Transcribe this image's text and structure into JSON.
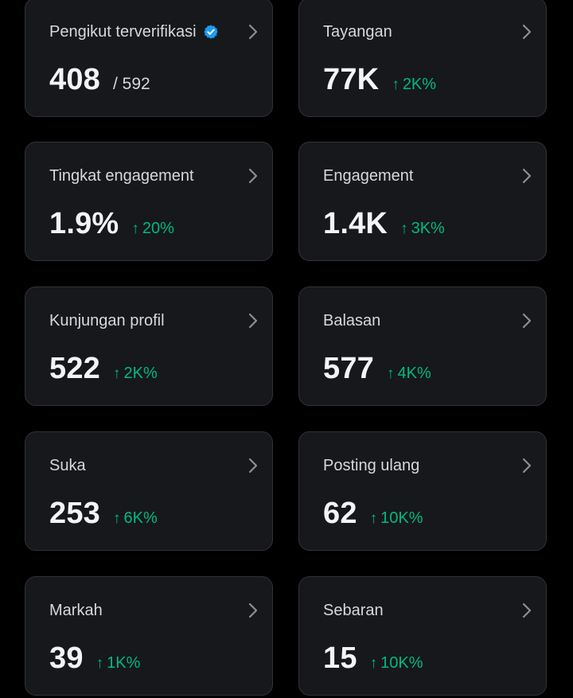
{
  "accent_color": "#1d9bf0",
  "positive_color": "#00ba7c",
  "cards": [
    {
      "label": "Pengikut terverifikasi",
      "value": "408",
      "sub": "/ 592",
      "verified_icon": "verified-badge-icon"
    },
    {
      "label": "Tayangan",
      "value": "77K",
      "delta_arrow": "↑",
      "delta": "2K%"
    },
    {
      "label": "Tingkat engagement",
      "value": "1.9%",
      "delta_arrow": "↑",
      "delta": "20%"
    },
    {
      "label": "Engagement",
      "value": "1.4K",
      "delta_arrow": "↑",
      "delta": "3K%"
    },
    {
      "label": "Kunjungan profil",
      "value": "522",
      "delta_arrow": "↑",
      "delta": "2K%"
    },
    {
      "label": "Balasan",
      "value": "577",
      "delta_arrow": "↑",
      "delta": "4K%"
    },
    {
      "label": "Suka",
      "value": "253",
      "delta_arrow": "↑",
      "delta": "6K%"
    },
    {
      "label": "Posting ulang",
      "value": "62",
      "delta_arrow": "↑",
      "delta": "10K%"
    },
    {
      "label": "Markah",
      "value": "39",
      "delta_arrow": "↑",
      "delta": "1K%"
    },
    {
      "label": "Sebaran",
      "value": "15",
      "delta_arrow": "↑",
      "delta": "10K%"
    }
  ]
}
